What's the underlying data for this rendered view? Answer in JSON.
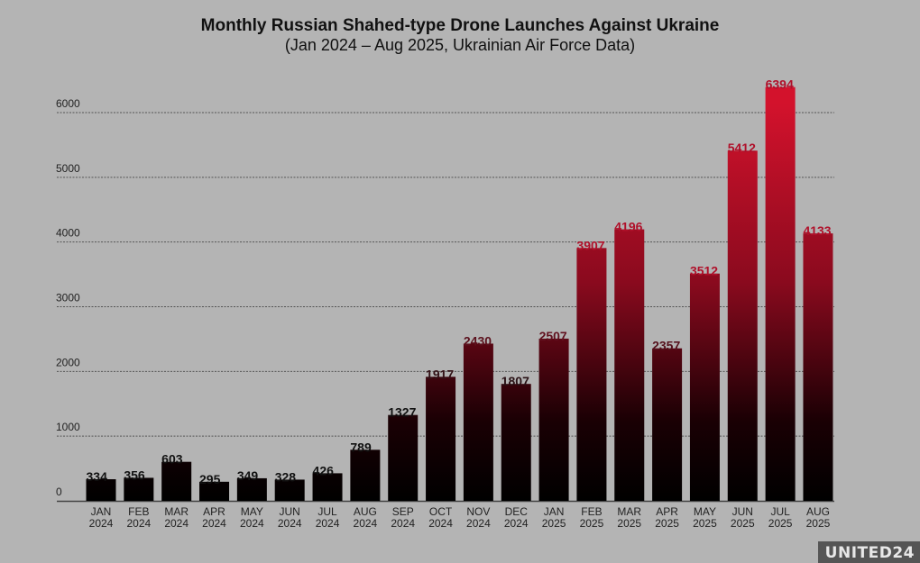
{
  "chart_data": {
    "type": "bar",
    "title": "Monthly Russian Shahed-type Drone Launches Against Ukraine",
    "subtitle": "(Jan 2024 – Aug 2025, Ukrainian Air Force Data)",
    "categories": [
      [
        "JAN",
        "2024"
      ],
      [
        "FEB",
        "2024"
      ],
      [
        "MAR",
        "2024"
      ],
      [
        "APR",
        "2024"
      ],
      [
        "MAY",
        "2024"
      ],
      [
        "JUN",
        "2024"
      ],
      [
        "JUL",
        "2024"
      ],
      [
        "AUG",
        "2024"
      ],
      [
        "SEP",
        "2024"
      ],
      [
        "OCT",
        "2024"
      ],
      [
        "NOV",
        "2024"
      ],
      [
        "DEC",
        "2024"
      ],
      [
        "JAN",
        "2025"
      ],
      [
        "FEB",
        "2025"
      ],
      [
        "MAR",
        "2025"
      ],
      [
        "APR",
        "2025"
      ],
      [
        "MAY",
        "2025"
      ],
      [
        "JUN",
        "2025"
      ],
      [
        "JUL",
        "2025"
      ],
      [
        "AUG",
        "2025"
      ]
    ],
    "values": [
      334,
      356,
      603,
      295,
      349,
      328,
      426,
      789,
      1327,
      1917,
      2430,
      1807,
      2507,
      3907,
      4196,
      2357,
      3512,
      5412,
      6394,
      4133
    ],
    "yticks": [
      0,
      1000,
      2000,
      3000,
      4000,
      5000,
      6000
    ],
    "ylim": [
      0,
      6000
    ],
    "grid": true,
    "colors": {
      "bar_low": "#000000",
      "bar_high": "#d3122c",
      "label_high": "#b0102a"
    }
  },
  "branding": {
    "logo": "UNITED24"
  }
}
